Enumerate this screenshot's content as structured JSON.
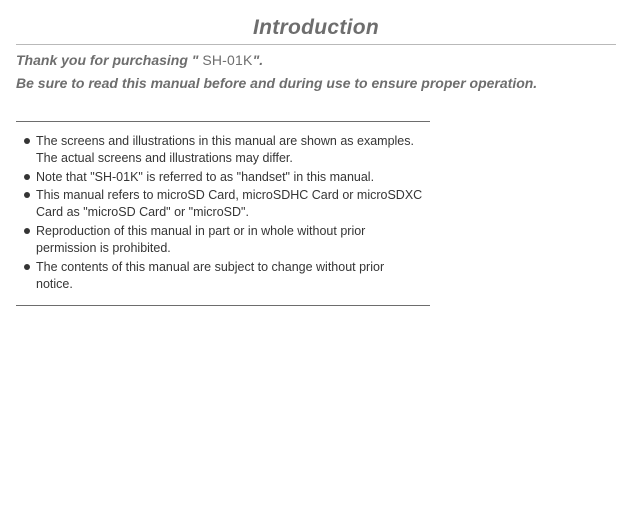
{
  "title": "Introduction",
  "subtitle_before": "Thank you for purchasing \" ",
  "model": "SH-01K",
  "subtitle_after": "\".",
  "subtitle_line2": "Be sure to read this manual before and during use to ensure proper operation.",
  "bullets": [
    "The screens and illustrations in this manual are shown as examples. The actual screens and illustrations may differ.",
    "Note that \"SH-01K\" is referred to as \"handset\" in this manual.",
    "This manual refers to microSD Card, microSDHC Card or microSDXC Card as \"microSD Card\" or \"microSD\".",
    "Reproduction of this manual in part or in whole without prior permission is prohibited.",
    "The contents of this manual are subject to change without prior notice."
  ],
  "colors": {
    "heading": "#6e6e6e",
    "body": "#353535",
    "rule": "#6d6d6d",
    "light_rule": "#b9b9b9"
  }
}
